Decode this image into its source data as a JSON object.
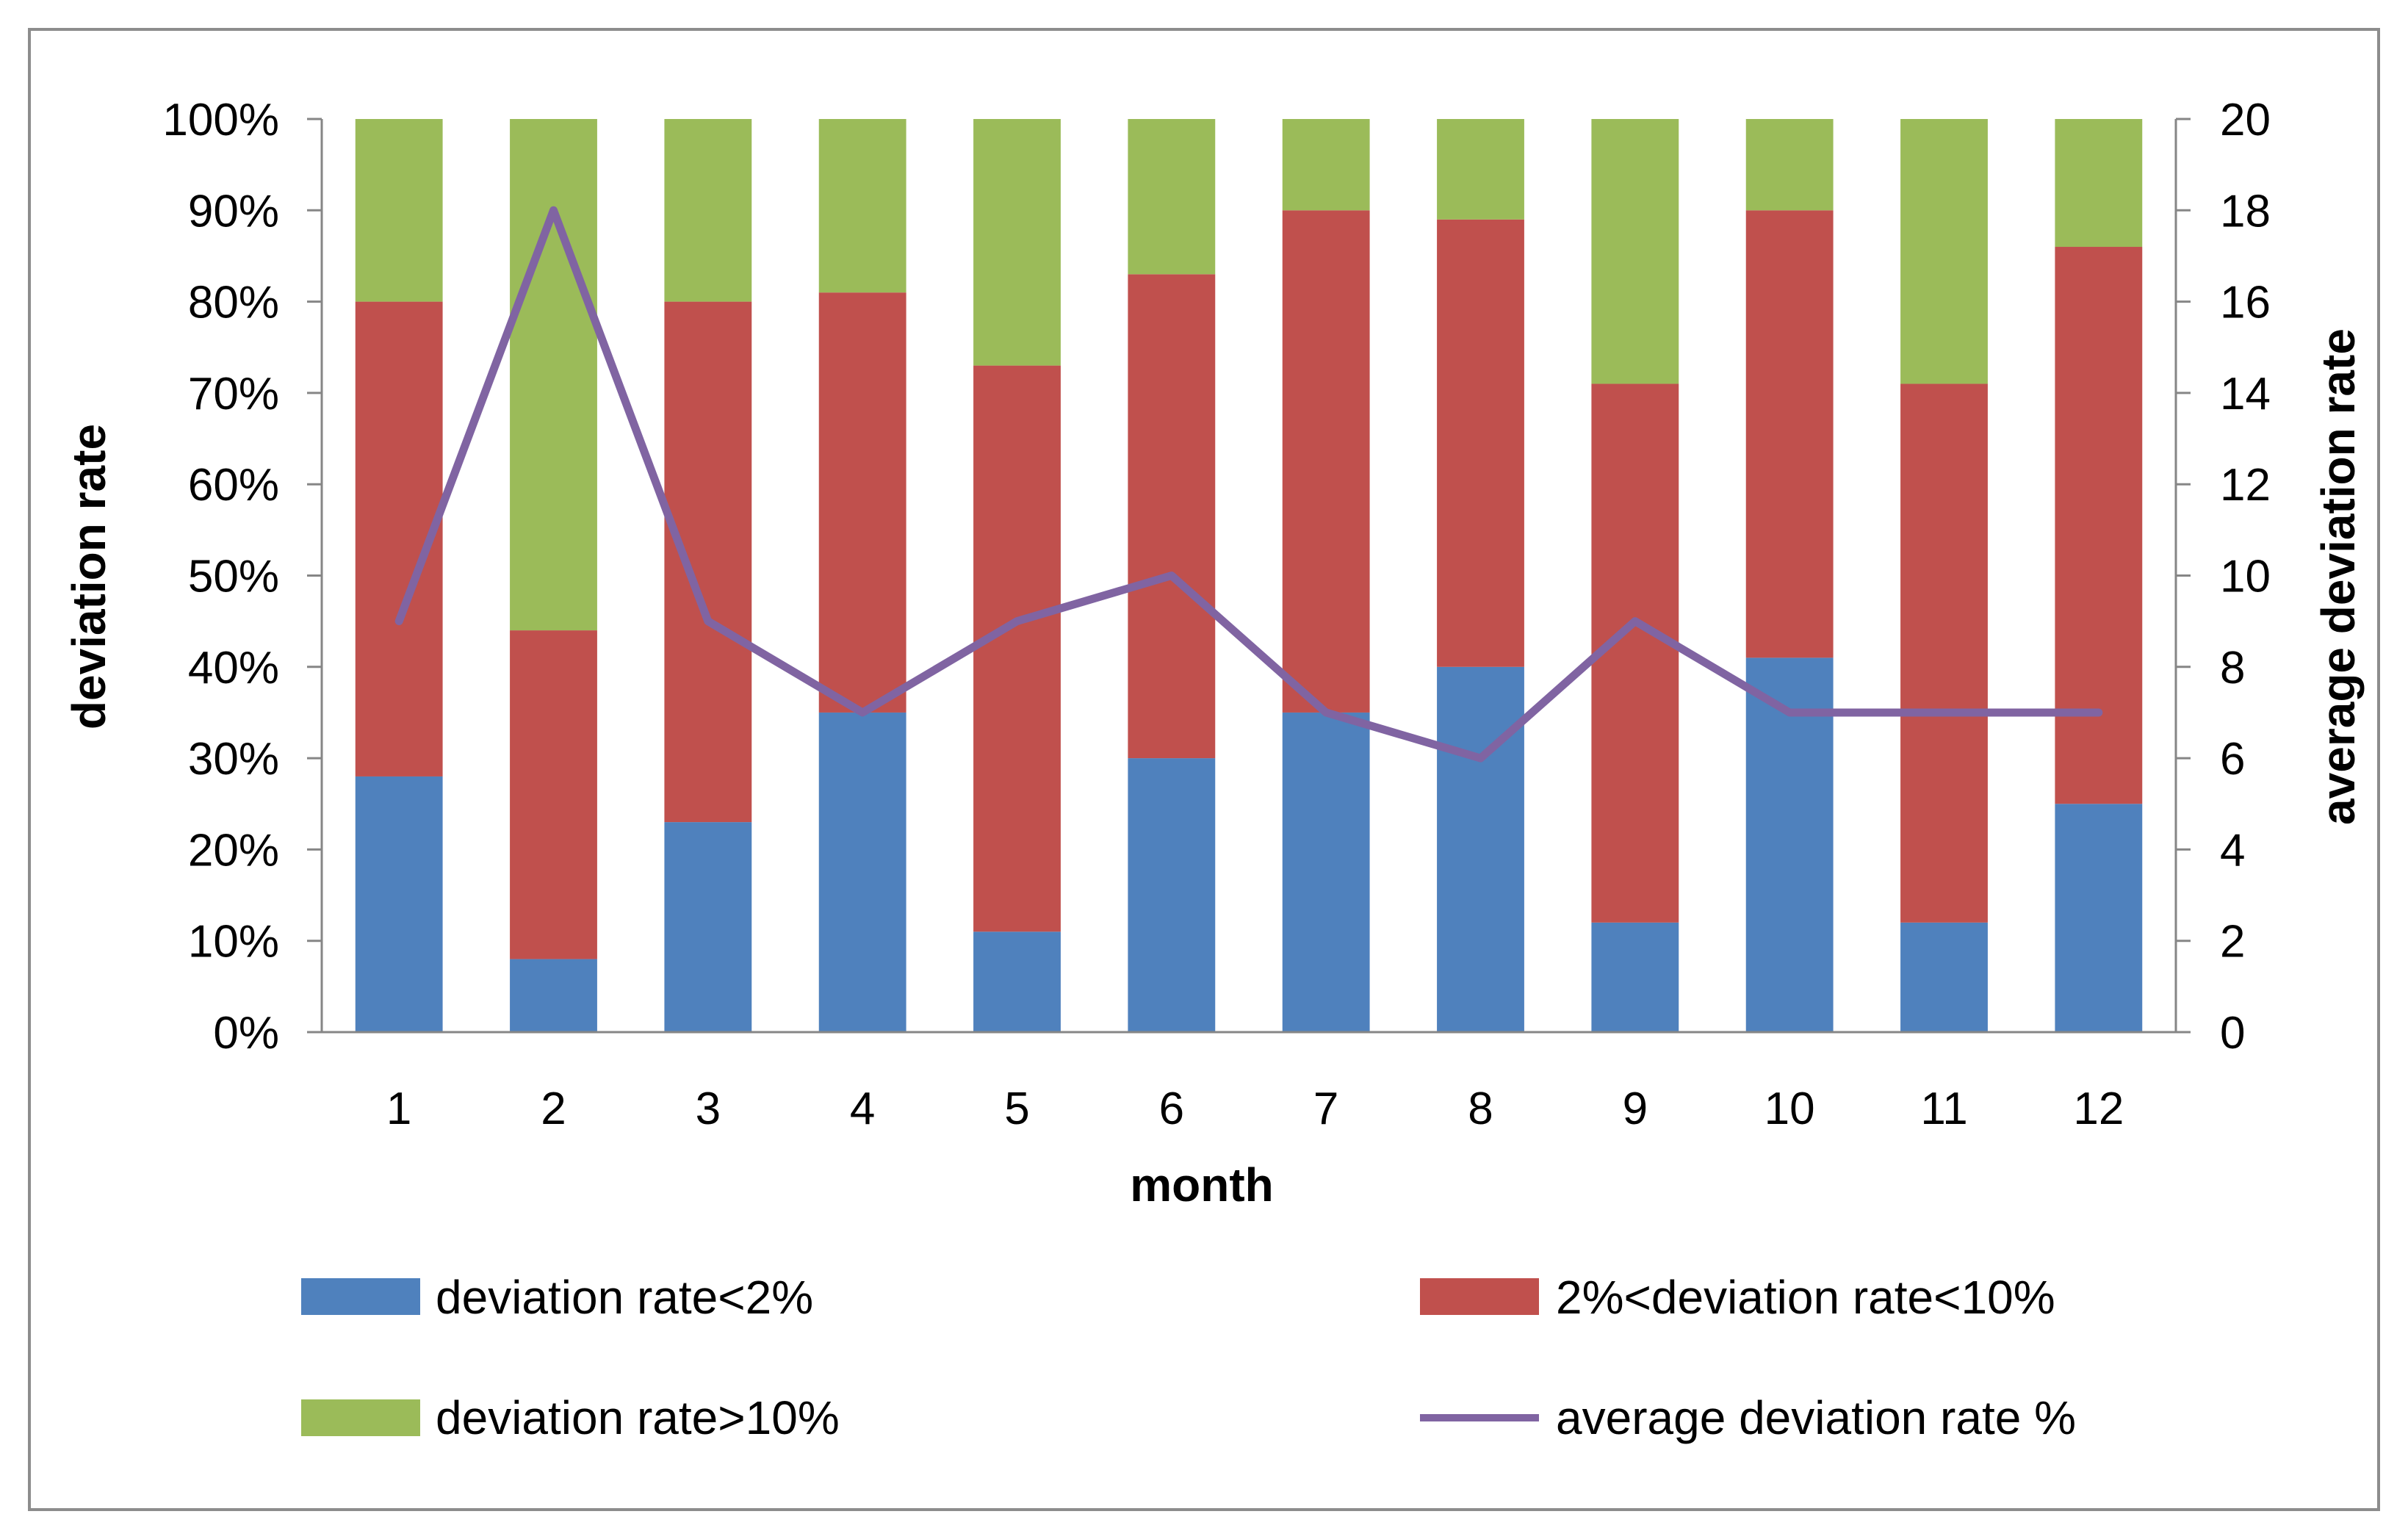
{
  "chart_data": {
    "type": "bar",
    "stacked": true,
    "categories": [
      "1",
      "2",
      "3",
      "4",
      "5",
      "6",
      "7",
      "8",
      "9",
      "10",
      "11",
      "12"
    ],
    "series": [
      {
        "name": "deviation rate<2%",
        "color": "#4F81BD",
        "axis": "left",
        "values": [
          28,
          8,
          23,
          35,
          11,
          30,
          35,
          40,
          12,
          41,
          12,
          25
        ]
      },
      {
        "name": "2%<deviation rate<10%",
        "color": "#C0504D",
        "axis": "left",
        "values": [
          52,
          36,
          57,
          46,
          62,
          53,
          55,
          49,
          59,
          49,
          59,
          61
        ]
      },
      {
        "name": "deviation rate>10%",
        "color": "#9BBB59",
        "axis": "left",
        "values": [
          20,
          56,
          20,
          19,
          27,
          17,
          10,
          11,
          29,
          10,
          29,
          14
        ]
      }
    ],
    "line_series": {
      "name": "average deviation rate %",
      "color": "#8064A2",
      "axis": "right",
      "values": [
        9,
        18,
        9,
        7,
        9,
        10,
        7,
        6,
        9,
        7,
        7,
        7
      ]
    },
    "xlabel": "month",
    "ylabel": "deviation rate",
    "y2label": "average deviation rate",
    "ylim": [
      0,
      100
    ],
    "y2lim": [
      0,
      20
    ],
    "y_ticks": [
      "0%",
      "10%",
      "20%",
      "30%",
      "40%",
      "50%",
      "60%",
      "70%",
      "80%",
      "90%",
      "100%"
    ],
    "y2_ticks": [
      "0",
      "2",
      "4",
      "6",
      "8",
      "10",
      "12",
      "14",
      "16",
      "18",
      "20"
    ],
    "legend": [
      {
        "label": "deviation rate<2%",
        "kind": "box",
        "color": "#4F81BD"
      },
      {
        "label": "2%<deviation rate<10%",
        "kind": "box",
        "color": "#C0504D"
      },
      {
        "label": "deviation rate>10%",
        "kind": "box",
        "color": "#9BBB59"
      },
      {
        "label": "average deviation rate %",
        "kind": "line",
        "color": "#8064A2"
      }
    ],
    "grid": false,
    "legend_position": "bottom"
  }
}
